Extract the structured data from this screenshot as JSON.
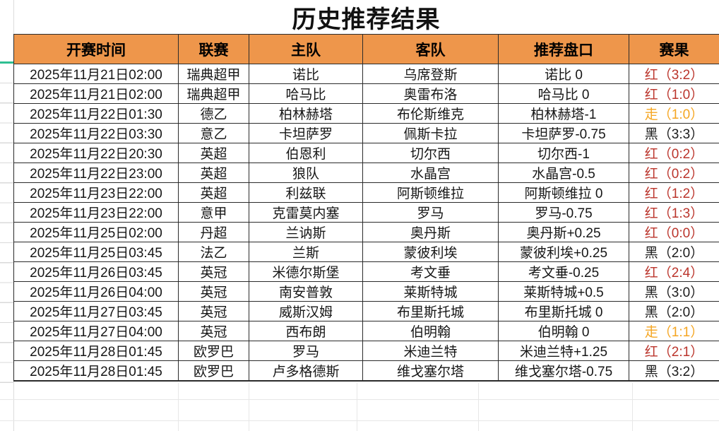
{
  "title": "历史推荐结果",
  "colors": {
    "header_bg": "#EE964B",
    "win": "#BB352C",
    "push": "#F5A623",
    "loss": "#1C1C1C",
    "freeze_indicator": "#2FBF92"
  },
  "table": {
    "headers": {
      "time": "开赛时间",
      "league": "联赛",
      "home": "主队",
      "away": "客队",
      "handicap": "推荐盘口",
      "result": "赛果"
    },
    "rows": [
      {
        "time": "2025年11月21日02:00",
        "league": "瑞典超甲",
        "home": "诺比",
        "away": "乌席登斯",
        "handicap": "诺比 0",
        "result": "红（3:2）",
        "result_type": "win"
      },
      {
        "time": "2025年11月21日02:00",
        "league": "瑞典超甲",
        "home": "哈马比",
        "away": "奥雷布洛",
        "handicap": "哈马比 0",
        "result": "红（1:0）",
        "result_type": "win"
      },
      {
        "time": "2025年11月22日01:30",
        "league": "德乙",
        "home": "柏林赫塔",
        "away": "布伦斯维克",
        "handicap": "柏林赫塔-1",
        "result": "走（1:0）",
        "result_type": "push"
      },
      {
        "time": "2025年11月22日03:30",
        "league": "意乙",
        "home": "卡坦萨罗",
        "away": "佩斯卡拉",
        "handicap": "卡坦萨罗-0.75",
        "result": "黑（3:3）",
        "result_type": "loss"
      },
      {
        "time": "2025年11月22日20:30",
        "league": "英超",
        "home": "伯恩利",
        "away": "切尔西",
        "handicap": "切尔西-1",
        "result": "红（0:2）",
        "result_type": "win"
      },
      {
        "time": "2025年11月22日23:00",
        "league": "英超",
        "home": "狼队",
        "away": "水晶宫",
        "handicap": "水晶宫-0.5",
        "result": "红（0:2）",
        "result_type": "win"
      },
      {
        "time": "2025年11月23日22:00",
        "league": "英超",
        "home": "利兹联",
        "away": "阿斯顿维拉",
        "handicap": "阿斯顿维拉 0",
        "result": "红（1:2）",
        "result_type": "win"
      },
      {
        "time": "2025年11月23日22:00",
        "league": "意甲",
        "home": "克雷莫内塞",
        "away": "罗马",
        "handicap": "罗马-0.75",
        "result": "红（1:3）",
        "result_type": "win"
      },
      {
        "time": "2025年11月25日02:00",
        "league": "丹超",
        "home": "兰讷斯",
        "away": "奥丹斯",
        "handicap": "奥丹斯+0.25",
        "result": "红（0:0）",
        "result_type": "win"
      },
      {
        "time": "2025年11月25日03:45",
        "league": "法乙",
        "home": "兰斯",
        "away": "蒙彼利埃",
        "handicap": "蒙彼利埃+0.25",
        "result": "黑（2:0）",
        "result_type": "loss"
      },
      {
        "time": "2025年11月26日03:45",
        "league": "英冠",
        "home": "米德尔斯堡",
        "away": "考文垂",
        "handicap": "考文垂-0.25",
        "result": "红（2:4）",
        "result_type": "win"
      },
      {
        "time": "2025年11月26日04:00",
        "league": "英冠",
        "home": "南安普敦",
        "away": "莱斯特城",
        "handicap": "莱斯特城+0.5",
        "result": "黑（3:0）",
        "result_type": "loss"
      },
      {
        "time": "2025年11月27日03:45",
        "league": "英冠",
        "home": "威斯汉姆",
        "away": "布里斯托城",
        "handicap": "布里斯托城 0",
        "result": "黑（2:0）",
        "result_type": "loss"
      },
      {
        "time": "2025年11月27日04:00",
        "league": "英冠",
        "home": "西布朗",
        "away": "伯明翰",
        "handicap": "伯明翰 0",
        "result": "走（1:1）",
        "result_type": "push"
      },
      {
        "time": "2025年11月28日01:45",
        "league": "欧罗巴",
        "home": "罗马",
        "away": "米迪兰特",
        "handicap": "米迪兰特+1.25",
        "result": "红（2:1）",
        "result_type": "win"
      },
      {
        "time": "2025年11月28日01:45",
        "league": "欧罗巴",
        "home": "卢多格德斯",
        "away": "维戈塞尔塔",
        "handicap": "维戈塞尔塔-0.75",
        "result": "黑（3:2）",
        "result_type": "loss"
      }
    ]
  }
}
